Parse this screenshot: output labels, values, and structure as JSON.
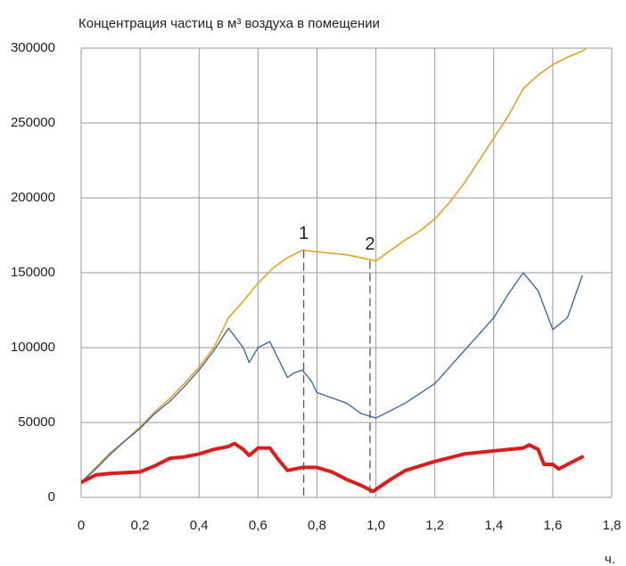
{
  "chart_data": {
    "type": "line",
    "title": "Концентрация частиц в м³ воздуха в помещении",
    "x_label": "ч.",
    "xlim": [
      0,
      1.8
    ],
    "xticks": [
      0,
      {
        "value": 0.2,
        "label": "0,2"
      },
      {
        "value": 0.4,
        "label": "0,4"
      },
      {
        "value": 0.6,
        "label": "0,6"
      },
      {
        "value": 0.8,
        "label": "0,8"
      },
      {
        "value": 1.0,
        "label": "1,0"
      },
      {
        "value": 1.2,
        "label": "1,2"
      },
      {
        "value": 1.4,
        "label": "1,4"
      },
      {
        "value": 1.6,
        "label": "1,6"
      },
      {
        "value": 1.8,
        "label": "1,8"
      }
    ],
    "ylim": [
      0,
      300000
    ],
    "yticks": [
      0,
      50000,
      100000,
      150000,
      200000,
      250000,
      300000
    ],
    "grid": true,
    "series": [
      {
        "color": "#f0a020",
        "width": 1.6,
        "x": [
          0,
          0.05,
          0.1,
          0.15,
          0.2,
          0.25,
          0.3,
          0.35,
          0.4,
          0.45,
          0.5,
          0.55,
          0.6,
          0.65,
          0.7,
          0.75,
          0.8,
          0.85,
          0.9,
          0.95,
          1.0,
          1.05,
          1.1,
          1.15,
          1.2,
          1.25,
          1.3,
          1.35,
          1.4,
          1.45,
          1.5,
          1.55,
          1.6,
          1.65,
          1.7,
          1.73
        ],
        "values": [
          10000,
          20000,
          30000,
          38000,
          47000,
          57000,
          66000,
          76000,
          87000,
          100000,
          120000,
          131000,
          143000,
          153000,
          160000,
          165000,
          164000,
          163000,
          162000,
          160000,
          158000,
          165000,
          172000,
          178000,
          186000,
          197000,
          210000,
          225000,
          240000,
          255000,
          273000,
          282000,
          289000,
          294000,
          298000,
          302000
        ]
      },
      {
        "color": "#3e6aa8",
        "width": 1.4,
        "x": [
          0,
          0.05,
          0.1,
          0.15,
          0.2,
          0.25,
          0.3,
          0.35,
          0.4,
          0.45,
          0.5,
          0.55,
          0.57,
          0.6,
          0.64,
          0.7,
          0.72,
          0.75,
          0.78,
          0.8,
          0.9,
          0.95,
          1.0,
          1.1,
          1.2,
          1.3,
          1.4,
          1.45,
          1.5,
          1.55,
          1.6,
          1.65,
          1.7
        ],
        "values": [
          10000,
          19000,
          29000,
          38000,
          46000,
          56000,
          64000,
          74000,
          85000,
          98000,
          113000,
          100000,
          90000,
          100000,
          104000,
          80000,
          83000,
          85000,
          78000,
          70000,
          63000,
          56000,
          53000,
          63000,
          76000,
          98000,
          120000,
          136000,
          150000,
          138000,
          112000,
          120000,
          148000
        ]
      },
      {
        "color": "#dd1c1c",
        "width": 4,
        "x": [
          0,
          0.05,
          0.1,
          0.2,
          0.25,
          0.3,
          0.35,
          0.4,
          0.45,
          0.5,
          0.52,
          0.55,
          0.57,
          0.6,
          0.64,
          0.67,
          0.7,
          0.75,
          0.8,
          0.85,
          0.9,
          0.95,
          0.99,
          1.05,
          1.1,
          1.2,
          1.3,
          1.4,
          1.5,
          1.52,
          1.55,
          1.57,
          1.6,
          1.62,
          1.65,
          1.7
        ],
        "values": [
          10000,
          15000,
          16000,
          17000,
          21000,
          26000,
          27000,
          29000,
          32000,
          34000,
          36000,
          32000,
          28000,
          33000,
          33000,
          25000,
          18000,
          20000,
          20000,
          17000,
          12000,
          8000,
          4000,
          12000,
          18000,
          24000,
          29000,
          31000,
          33000,
          35000,
          32000,
          22000,
          22000,
          19000,
          22000,
          27000
        ]
      }
    ],
    "annotations": [
      {
        "text": "1",
        "x": 0.755,
        "y": 165000
      },
      {
        "text": "2",
        "x": 0.98,
        "y": 158000
      }
    ]
  }
}
